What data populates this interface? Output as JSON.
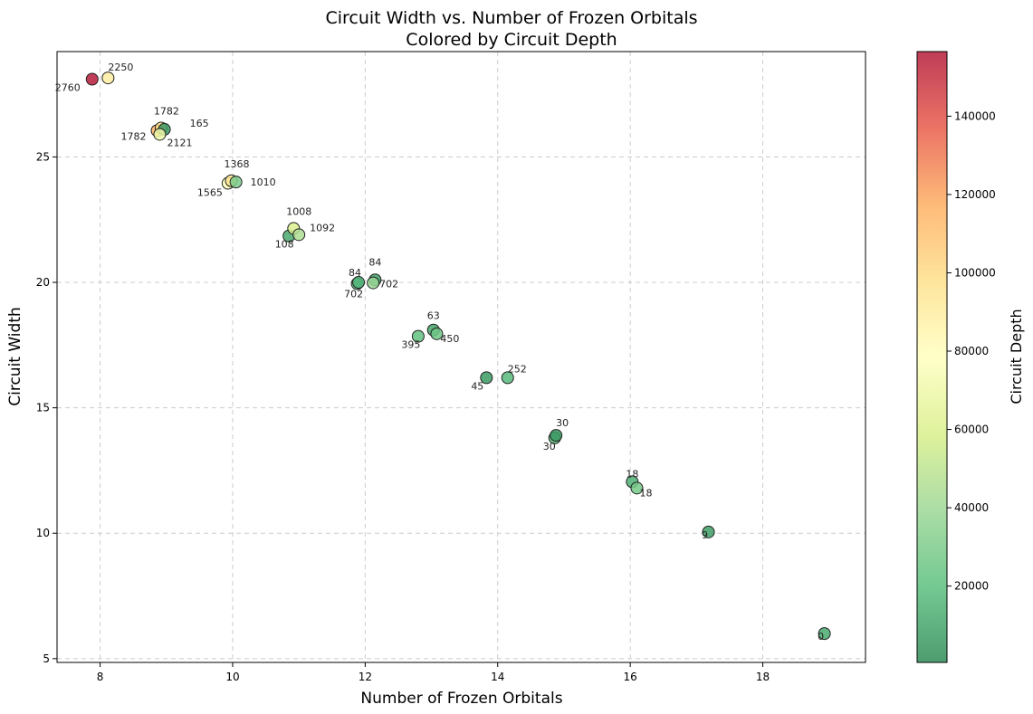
{
  "chart_data": {
    "type": "scatter",
    "title": "Circuit Width vs. Number of Frozen Orbitals",
    "subtitle": "Colored by Circuit Depth",
    "xlabel": "Number of Frozen Orbitals",
    "ylabel": "Circuit Width",
    "colorbar_label": "Circuit Depth",
    "xlim": [
      7.35,
      19.55
    ],
    "ylim": [
      4.85,
      29.2
    ],
    "xticks": [
      8,
      10,
      12,
      14,
      16,
      18
    ],
    "yticks": [
      5,
      10,
      15,
      20,
      25
    ],
    "colorbar_range": [
      500,
      156500
    ],
    "colorbar_ticks": [
      20000,
      40000,
      60000,
      80000,
      100000,
      120000,
      140000
    ],
    "grid": true,
    "colormap": [
      "#2e8b57",
      "#5cbf7f",
      "#9dd796",
      "#d9ef8b",
      "#ffffbf",
      "#fee08b",
      "#fdae61",
      "#e85b4a",
      "#b41a3a"
    ],
    "points": [
      {
        "x": 7.88,
        "y": 28.1,
        "depth": 156000,
        "label": "2760"
      },
      {
        "x": 8.12,
        "y": 28.15,
        "depth": 90000,
        "label": "2250"
      },
      {
        "x": 8.86,
        "y": 26.05,
        "depth": 115000,
        "label": "1782"
      },
      {
        "x": 8.92,
        "y": 26.15,
        "depth": 98000,
        "label": "1782"
      },
      {
        "x": 8.97,
        "y": 26.1,
        "depth": 5000,
        "label": "165"
      },
      {
        "x": 8.9,
        "y": 25.9,
        "depth": 70000,
        "label": "2121"
      },
      {
        "x": 9.93,
        "y": 23.95,
        "depth": 80000,
        "label": "1565"
      },
      {
        "x": 9.98,
        "y": 24.05,
        "depth": 95000,
        "label": "1368"
      },
      {
        "x": 10.05,
        "y": 24.0,
        "depth": 30000,
        "label": "1010"
      },
      {
        "x": 10.85,
        "y": 21.85,
        "depth": 12000,
        "label": "108"
      },
      {
        "x": 10.92,
        "y": 22.15,
        "depth": 60000,
        "label": "1008"
      },
      {
        "x": 11.0,
        "y": 21.9,
        "depth": 45000,
        "label": "1092"
      },
      {
        "x": 11.88,
        "y": 19.95,
        "depth": 20000,
        "label": "702"
      },
      {
        "x": 11.9,
        "y": 20.0,
        "depth": 15000,
        "label": "84"
      },
      {
        "x": 12.15,
        "y": 20.1,
        "depth": 8000,
        "label": "84"
      },
      {
        "x": 12.12,
        "y": 19.98,
        "depth": 38000,
        "label": "702"
      },
      {
        "x": 12.8,
        "y": 17.85,
        "depth": 22000,
        "label": "395"
      },
      {
        "x": 13.03,
        "y": 18.1,
        "depth": 10000,
        "label": "63"
      },
      {
        "x": 13.08,
        "y": 17.95,
        "depth": 25000,
        "label": "450"
      },
      {
        "x": 13.83,
        "y": 16.2,
        "depth": 6000,
        "label": "45"
      },
      {
        "x": 14.15,
        "y": 16.2,
        "depth": 18000,
        "label": "252"
      },
      {
        "x": 14.86,
        "y": 13.8,
        "depth": 20000,
        "label": "30"
      },
      {
        "x": 14.88,
        "y": 13.9,
        "depth": 5000,
        "label": "30"
      },
      {
        "x": 16.03,
        "y": 12.05,
        "depth": 14000,
        "label": "18"
      },
      {
        "x": 16.1,
        "y": 11.8,
        "depth": 28000,
        "label": "18"
      },
      {
        "x": 17.18,
        "y": 10.05,
        "depth": 8000,
        "label": "9"
      },
      {
        "x": 18.93,
        "y": 6.0,
        "depth": 12000,
        "label": "0"
      }
    ]
  }
}
